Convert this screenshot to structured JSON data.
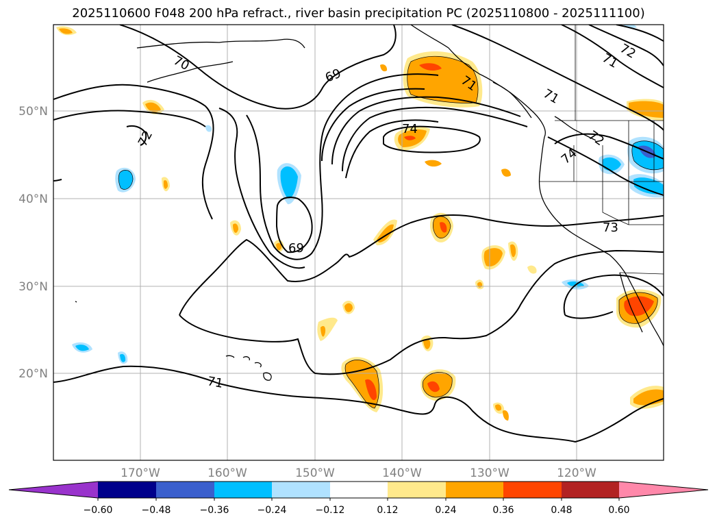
{
  "title": "2025110600 F048 200 hPa refract., river basin precipitation PC (2025110800 - 2025111100)",
  "map": {
    "lat_labels": [
      "50°N",
      "40°N",
      "30°N",
      "20°N"
    ],
    "lon_labels": [
      "170°W",
      "160°W",
      "150°W",
      "140°W",
      "130°W",
      "120°W"
    ],
    "contour_labels": [
      "70",
      "69",
      "71",
      "72",
      "71",
      "72",
      "74",
      "72",
      "73",
      "71",
      "69",
      "71",
      "74"
    ]
  },
  "colorbar": {
    "tick_labels": [
      "−0.60",
      "−0.48",
      "−0.36",
      "−0.24",
      "−0.12",
      "0.12",
      "0.24",
      "0.36",
      "0.48",
      "0.60"
    ],
    "colors": [
      "#9933cc",
      "#00008b",
      "#3a5fcd",
      "#00bfff",
      "#b0e2ff",
      "#ffffff",
      "#ffe98c",
      "#ffa500",
      "#ff4500",
      "#b22222",
      "#ff88aa"
    ]
  }
}
